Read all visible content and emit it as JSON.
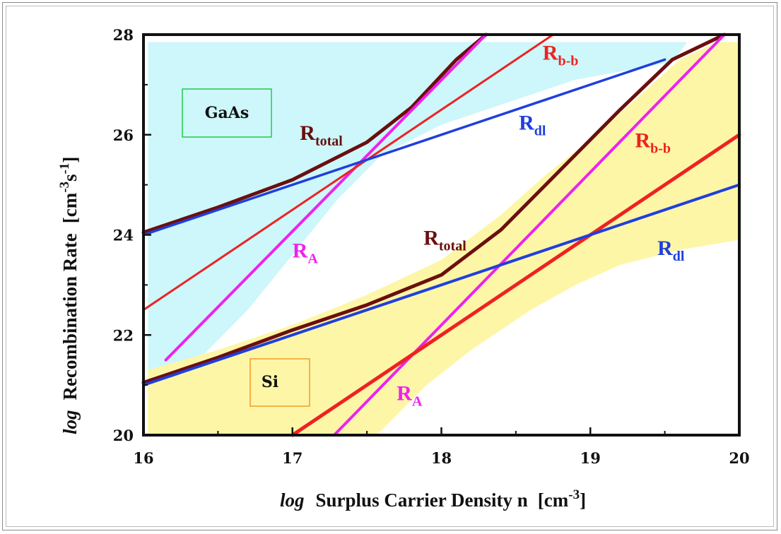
{
  "chart_data": {
    "type": "line",
    "xlabel": {
      "prefix": "log",
      "main": "Surplus Carrier Density n",
      "unit": "[cm",
      "unit_sup": "-3",
      "unit_end": "]"
    },
    "ylabel": {
      "prefix": "log",
      "main": "Recombination Rate",
      "unit": "[cm",
      "unit_sup1": "-3",
      "unit_mid": "s",
      "unit_sup2": "-1",
      "unit_end": "]"
    },
    "xlim": [
      16,
      20
    ],
    "ylim": [
      20,
      28
    ],
    "xticks": [
      "16",
      "17",
      "18",
      "19",
      "20"
    ],
    "yticks": [
      "20",
      "22",
      "24",
      "26",
      "28"
    ],
    "grid": false,
    "regions": [
      {
        "name": "GaAs",
        "label": "GaAs",
        "color": "#cdf7fa",
        "border": "#22cc44",
        "upper": [
          [
            16.03,
            27.85
          ],
          [
            19.65,
            27.85
          ]
        ],
        "lower": [
          [
            19.55,
            27.45
          ],
          [
            18.9,
            27.1
          ],
          [
            18.4,
            26.6
          ],
          [
            18.0,
            26.2
          ],
          [
            17.6,
            25.6
          ],
          [
            17.3,
            24.7
          ],
          [
            17.0,
            23.6
          ],
          [
            16.7,
            22.5
          ],
          [
            16.4,
            21.6
          ],
          [
            16.03,
            21.3
          ]
        ]
      },
      {
        "name": "Si",
        "label": "Si",
        "color": "#fdf6a6",
        "border": "#f59a2a",
        "upper": [
          [
            16.03,
            21.3
          ],
          [
            16.5,
            21.7
          ],
          [
            17.0,
            22.2
          ],
          [
            17.5,
            22.8
          ],
          [
            18.0,
            23.5
          ],
          [
            18.4,
            24.4
          ],
          [
            18.7,
            25.2
          ],
          [
            19.0,
            25.9
          ],
          [
            19.3,
            26.7
          ],
          [
            19.6,
            27.5
          ],
          [
            19.85,
            27.85
          ],
          [
            20.0,
            27.85
          ]
        ],
        "lower": [
          [
            20.0,
            23.9
          ],
          [
            19.6,
            23.7
          ],
          [
            19.2,
            23.4
          ],
          [
            18.9,
            23.0
          ],
          [
            18.6,
            22.5
          ],
          [
            18.2,
            21.7
          ],
          [
            17.9,
            21.0
          ],
          [
            17.6,
            20.1
          ],
          [
            17.55,
            20.0
          ],
          [
            16.03,
            20.0
          ]
        ]
      }
    ],
    "series": [
      {
        "name": "R_total (GaAs)",
        "label": "R",
        "sub": "total",
        "color": "#6b0f0f",
        "points": [
          [
            16.0,
            24.05
          ],
          [
            16.5,
            24.55
          ],
          [
            17.0,
            25.1
          ],
          [
            17.5,
            25.85
          ],
          [
            17.8,
            26.55
          ],
          [
            18.1,
            27.5
          ],
          [
            18.3,
            28.0
          ]
        ]
      },
      {
        "name": "R_A (GaAs)",
        "label": "R",
        "sub": "A",
        "color": "#ee22ee",
        "points": [
          [
            16.15,
            21.5
          ],
          [
            18.3,
            28.0
          ]
        ]
      },
      {
        "name": "R_b-b (GaAs)",
        "label": "R",
        "sub": "b-b",
        "color": "#ee2222",
        "points": [
          [
            16.0,
            22.5
          ],
          [
            18.75,
            28.0
          ]
        ]
      },
      {
        "name": "R_dl (GaAs)",
        "label": "R",
        "sub": "dl",
        "color": "#1f3fdd",
        "points": [
          [
            16.0,
            24.0
          ],
          [
            19.5,
            27.5
          ]
        ]
      },
      {
        "name": "R_total (Si)",
        "label": "R",
        "sub": "total",
        "color": "#6b0f0f",
        "points": [
          [
            16.0,
            21.05
          ],
          [
            16.5,
            21.55
          ],
          [
            17.0,
            22.1
          ],
          [
            17.5,
            22.6
          ],
          [
            18.0,
            23.2
          ],
          [
            18.4,
            24.1
          ],
          [
            18.8,
            25.3
          ],
          [
            19.2,
            26.5
          ],
          [
            19.55,
            27.5
          ],
          [
            19.9,
            28.0
          ]
        ]
      },
      {
        "name": "R_A (Si)",
        "label": "R",
        "sub": "A",
        "color": "#ee22ee",
        "points": [
          [
            17.28,
            20.0
          ],
          [
            19.9,
            28.0
          ]
        ]
      },
      {
        "name": "R_b-b (Si)",
        "label": "R",
        "sub": "b-b",
        "color": "#ee2222",
        "points": [
          [
            17.0,
            20.0
          ],
          [
            20.0,
            26.0
          ]
        ]
      },
      {
        "name": "R_dl (Si)",
        "label": "R",
        "sub": "dl",
        "color": "#1f3fdd",
        "points": [
          [
            16.0,
            21.0
          ],
          [
            20.0,
            25.0
          ]
        ]
      }
    ],
    "annotations": [
      {
        "series": 0,
        "x": 17.05,
        "y": 25.9
      },
      {
        "series": 1,
        "x": 17.0,
        "y": 23.55
      },
      {
        "series": 2,
        "x": 18.68,
        "y": 27.5
      },
      {
        "series": 3,
        "x": 18.52,
        "y": 26.1
      },
      {
        "series": 4,
        "x": 17.88,
        "y": 23.8
      },
      {
        "series": 5,
        "x": 17.7,
        "y": 20.7
      },
      {
        "series": 6,
        "x": 19.3,
        "y": 25.75
      },
      {
        "series": 7,
        "x": 19.45,
        "y": 23.6
      }
    ]
  }
}
